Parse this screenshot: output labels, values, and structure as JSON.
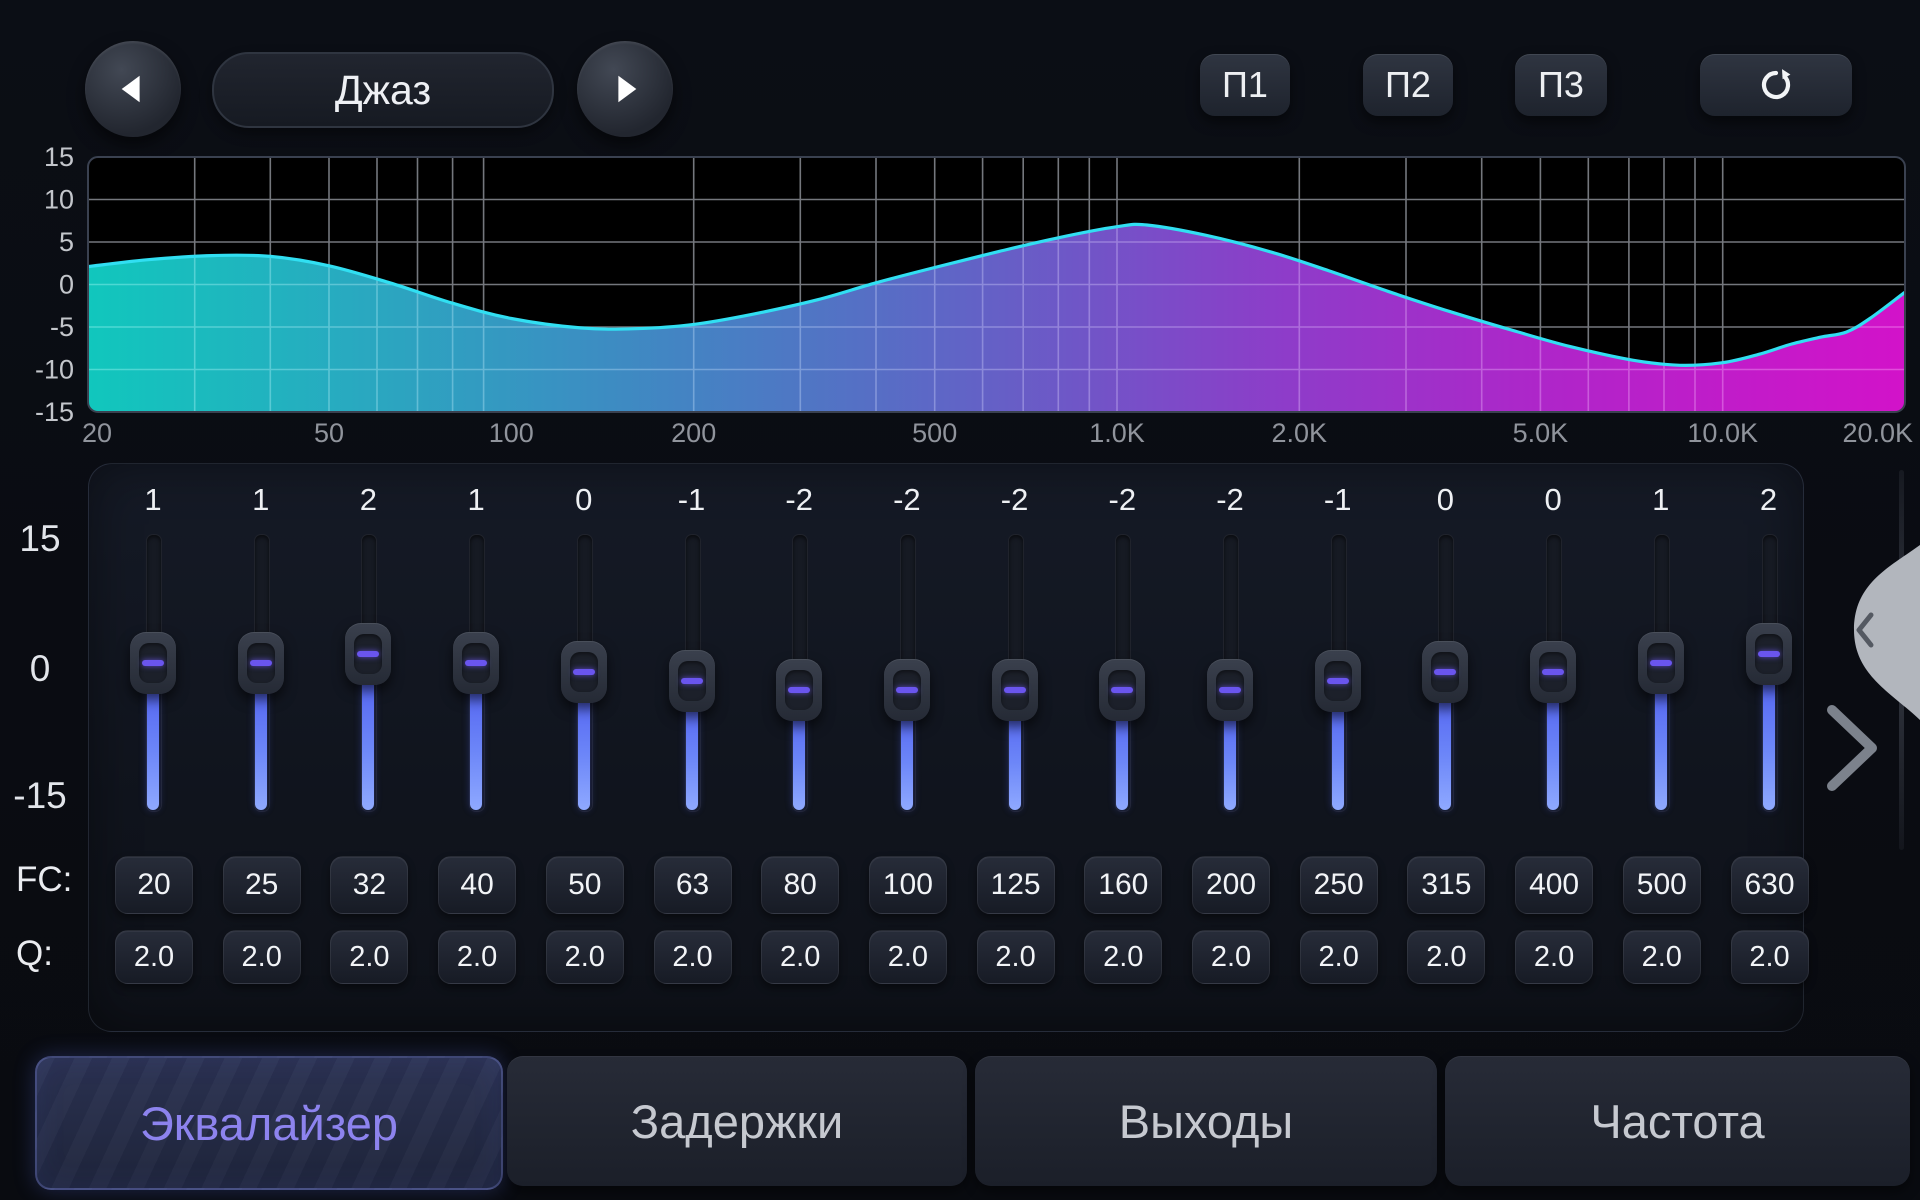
{
  "header": {
    "prev_icon": "left-triangle",
    "next_icon": "right-triangle",
    "preset_name": "Джаз",
    "memory_buttons": [
      "П1",
      "П2",
      "П3"
    ],
    "reset_icon": "reset-circular-arrow"
  },
  "chart_data": {
    "type": "area",
    "title": "EQ frequency response",
    "x_scale": "log",
    "x_range": [
      20,
      20000
    ],
    "y_range": [
      -15,
      15
    ],
    "x_tick_labels": [
      "20",
      "50",
      "100",
      "200",
      "500",
      "1.0K",
      "2.0K",
      "5.0K",
      "10.0K",
      "20.0K"
    ],
    "x_tick_freqs": [
      20,
      50,
      100,
      200,
      500,
      1000,
      2000,
      5000,
      10000,
      20000
    ],
    "y_ticks": [
      15,
      10,
      5,
      0,
      -5,
      -10,
      -15
    ],
    "grid": true,
    "line_color": "#31dff2",
    "fill_gradient": [
      "#12d8cd",
      "#2bb9d0",
      "#4495d3",
      "#5f76d6",
      "#7a5cd8",
      "#9a41da",
      "#bd29da",
      "#e414da"
    ],
    "points": [
      [
        20,
        2.1
      ],
      [
        25,
        2.9
      ],
      [
        32,
        3.4
      ],
      [
        40,
        3.3
      ],
      [
        50,
        2.2
      ],
      [
        63,
        0.2
      ],
      [
        80,
        -2.2
      ],
      [
        100,
        -4.0
      ],
      [
        130,
        -5.1
      ],
      [
        160,
        -5.2
      ],
      [
        200,
        -4.7
      ],
      [
        250,
        -3.5
      ],
      [
        320,
        -1.8
      ],
      [
        400,
        0.2
      ],
      [
        500,
        2.0
      ],
      [
        640,
        3.9
      ],
      [
        800,
        5.5
      ],
      [
        1000,
        6.8
      ],
      [
        1120,
        7.0
      ],
      [
        1400,
        5.8
      ],
      [
        1800,
        3.8
      ],
      [
        2240,
        1.6
      ],
      [
        2800,
        -0.8
      ],
      [
        3550,
        -3.2
      ],
      [
        4500,
        -5.4
      ],
      [
        5600,
        -7.3
      ],
      [
        7100,
        -8.9
      ],
      [
        8500,
        -9.5
      ],
      [
        10000,
        -9.2
      ],
      [
        11500,
        -8.2
      ],
      [
        13000,
        -7.0
      ],
      [
        14500,
        -6.2
      ],
      [
        16000,
        -5.6
      ],
      [
        17500,
        -4.0
      ],
      [
        20000,
        -0.9
      ]
    ]
  },
  "eq": {
    "scale_labels": [
      "15",
      "0",
      "-15"
    ],
    "fc_label": "FC:",
    "q_label": "Q:",
    "bands": [
      {
        "gain": "1",
        "fc": "20",
        "q": "2.0"
      },
      {
        "gain": "1",
        "fc": "25",
        "q": "2.0"
      },
      {
        "gain": "2",
        "fc": "32",
        "q": "2.0"
      },
      {
        "gain": "1",
        "fc": "40",
        "q": "2.0"
      },
      {
        "gain": "0",
        "fc": "50",
        "q": "2.0"
      },
      {
        "gain": "-1",
        "fc": "63",
        "q": "2.0"
      },
      {
        "gain": "-2",
        "fc": "80",
        "q": "2.0"
      },
      {
        "gain": "-2",
        "fc": "100",
        "q": "2.0"
      },
      {
        "gain": "-2",
        "fc": "125",
        "q": "2.0"
      },
      {
        "gain": "-2",
        "fc": "160",
        "q": "2.0"
      },
      {
        "gain": "-2",
        "fc": "200",
        "q": "2.0"
      },
      {
        "gain": "-1",
        "fc": "250",
        "q": "2.0"
      },
      {
        "gain": "0",
        "fc": "315",
        "q": "2.0"
      },
      {
        "gain": "0",
        "fc": "400",
        "q": "2.0"
      },
      {
        "gain": "1",
        "fc": "500",
        "q": "2.0"
      },
      {
        "gain": "2",
        "fc": "630",
        "q": "2.0"
      }
    ]
  },
  "side_panel": {
    "drawer_chevron": "<",
    "more_chevron": ">"
  },
  "tabs": [
    {
      "label": "Эквалайзер",
      "active": true
    },
    {
      "label": "Задержки",
      "active": false
    },
    {
      "label": "Выходы",
      "active": false
    },
    {
      "label": "Частота",
      "active": false
    }
  ]
}
